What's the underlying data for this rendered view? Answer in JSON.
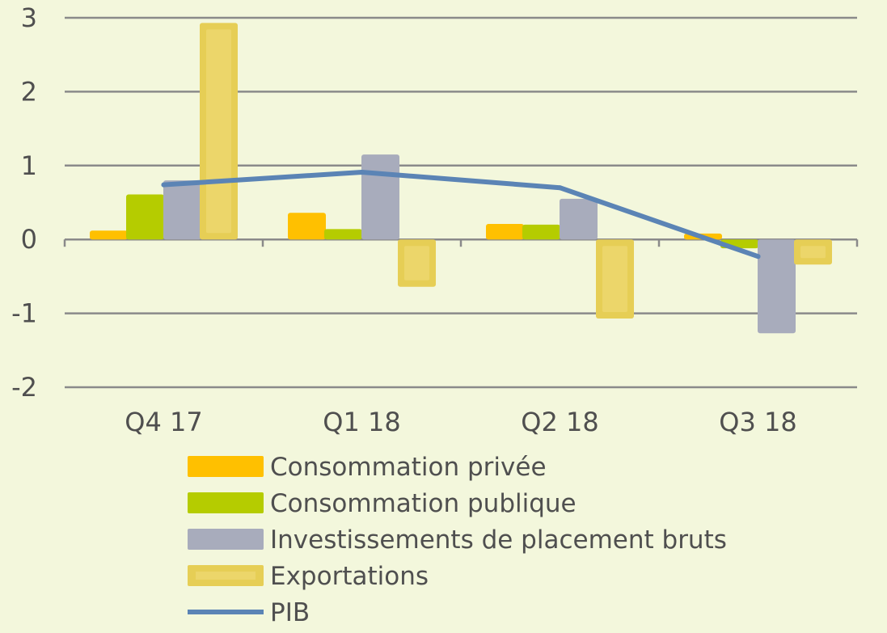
{
  "chart_data": {
    "type": "bar",
    "categories": [
      "Q4 17",
      "Q1 18",
      "Q2 18",
      "Q3 18"
    ],
    "y_ticks": [
      "3",
      "2",
      "1",
      "0",
      "-1",
      "-2"
    ],
    "ylim": [
      -2,
      3
    ],
    "grid": true,
    "legend_position": "bottom",
    "series": [
      {
        "name": "Consommation privée",
        "kind": "bar",
        "color": "#ffc000",
        "values": [
          0.12,
          0.36,
          0.21,
          0.08
        ]
      },
      {
        "name": "Consommation publique",
        "kind": "bar",
        "color": "#b5cc00",
        "values": [
          0.61,
          0.14,
          0.2,
          -0.12
        ]
      },
      {
        "name": "Investissements de placement bruts",
        "kind": "bar",
        "color": "#a8acbc",
        "values": [
          0.8,
          1.15,
          0.55,
          -1.27
        ]
      },
      {
        "name": "Exportations",
        "kind": "bar",
        "color": "#e6ce55",
        "values": [
          2.93,
          -0.64,
          -1.07,
          -0.34
        ]
      },
      {
        "name": "PIB",
        "kind": "line",
        "color": "#5b84b5",
        "values": [
          0.74,
          0.91,
          0.7,
          -0.23
        ]
      }
    ]
  }
}
